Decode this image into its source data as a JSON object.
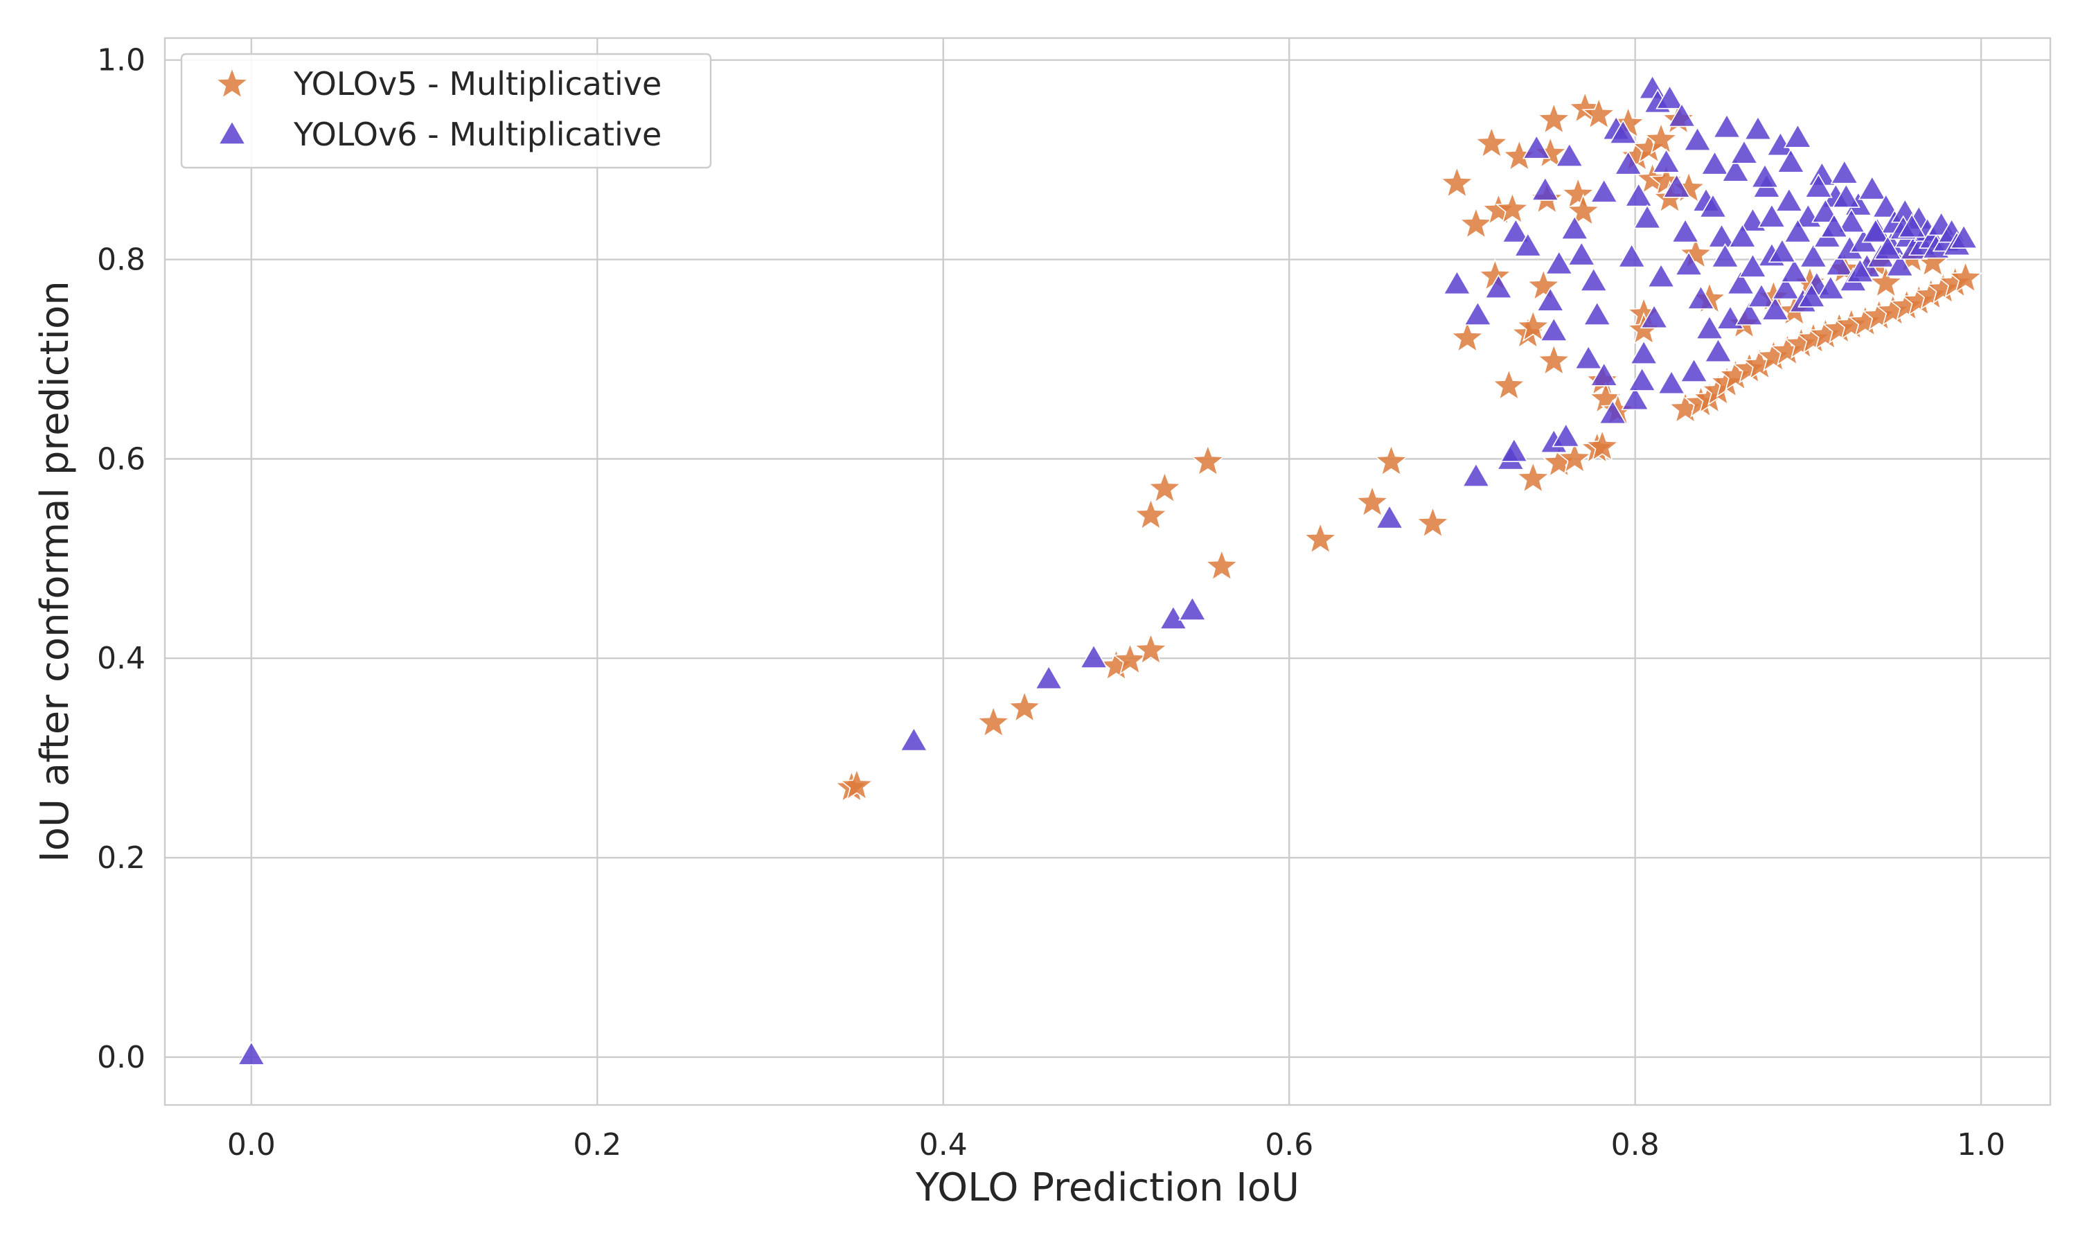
{
  "chart_data": {
    "type": "scatter",
    "title": "",
    "xlabel": "YOLO Prediction IoU",
    "ylabel": "IoU after conformal prediction",
    "xlim": [
      -0.05,
      1.04
    ],
    "ylim": [
      -0.048,
      1.022
    ],
    "xticks": [
      "0.0",
      "0.2",
      "0.4",
      "0.6",
      "0.8",
      "1.0"
    ],
    "yticks": [
      "0.0",
      "0.2",
      "0.4",
      "0.6",
      "0.8",
      "1.0"
    ],
    "grid": true,
    "legend_position": "top-left",
    "series": [
      {
        "name": "YOLOv5 - Multiplicative",
        "marker": "star",
        "color": "#dd7a3c",
        "points": [
          [
            0.347,
            0.27
          ],
          [
            0.35,
            0.272
          ],
          [
            0.429,
            0.335
          ],
          [
            0.447,
            0.35
          ],
          [
            0.5,
            0.392
          ],
          [
            0.508,
            0.398
          ],
          [
            0.52,
            0.408
          ],
          [
            0.52,
            0.543
          ],
          [
            0.528,
            0.57
          ],
          [
            0.553,
            0.597
          ],
          [
            0.561,
            0.492
          ],
          [
            0.618,
            0.519
          ],
          [
            0.648,
            0.556
          ],
          [
            0.659,
            0.597
          ],
          [
            0.683,
            0.535
          ],
          [
            0.697,
            0.876
          ],
          [
            0.703,
            0.721
          ],
          [
            0.708,
            0.835
          ],
          [
            0.717,
            0.916
          ],
          [
            0.719,
            0.783
          ],
          [
            0.721,
            0.849
          ],
          [
            0.727,
            0.673
          ],
          [
            0.729,
            0.85
          ],
          [
            0.733,
            0.903
          ],
          [
            0.738,
            0.725
          ],
          [
            0.741,
            0.732
          ],
          [
            0.741,
            0.58
          ],
          [
            0.747,
            0.773
          ],
          [
            0.749,
            0.86
          ],
          [
            0.751,
            0.906
          ],
          [
            0.753,
            0.698
          ],
          [
            0.753,
            0.94
          ],
          [
            0.756,
            0.596
          ],
          [
            0.765,
            0.6
          ],
          [
            0.767,
            0.865
          ],
          [
            0.77,
            0.848
          ],
          [
            0.771,
            0.951
          ],
          [
            0.779,
            0.945
          ],
          [
            0.778,
            0.61
          ],
          [
            0.781,
            0.612
          ],
          [
            0.781,
            0.678
          ],
          [
            0.783,
            0.66
          ],
          [
            0.79,
            0.648
          ],
          [
            0.796,
            0.936
          ],
          [
            0.801,
            0.903
          ],
          [
            0.805,
            0.745
          ],
          [
            0.805,
            0.729
          ],
          [
            0.808,
            0.911
          ],
          [
            0.81,
            0.88
          ],
          [
            0.815,
            0.92
          ],
          [
            0.818,
            0.878
          ],
          [
            0.82,
            0.861
          ],
          [
            0.825,
            0.94
          ],
          [
            0.829,
            0.65
          ],
          [
            0.831,
            0.871
          ],
          [
            0.835,
            0.805
          ],
          [
            0.838,
            0.656
          ],
          [
            0.843,
            0.66
          ],
          [
            0.848,
            0.668
          ],
          [
            0.853,
            0.676
          ],
          [
            0.858,
            0.683
          ],
          [
            0.866,
            0.69
          ],
          [
            0.872,
            0.694
          ],
          [
            0.88,
            0.702
          ],
          [
            0.888,
            0.708
          ],
          [
            0.896,
            0.715
          ],
          [
            0.903,
            0.72
          ],
          [
            0.91,
            0.724
          ],
          [
            0.918,
            0.73
          ],
          [
            0.925,
            0.734
          ],
          [
            0.933,
            0.737
          ],
          [
            0.941,
            0.743
          ],
          [
            0.949,
            0.748
          ],
          [
            0.957,
            0.753
          ],
          [
            0.964,
            0.758
          ],
          [
            0.971,
            0.764
          ],
          [
            0.978,
            0.77
          ],
          [
            0.985,
            0.776
          ],
          [
            0.991,
            0.781
          ],
          [
            0.863,
            0.735
          ],
          [
            0.88,
            0.762
          ],
          [
            0.901,
            0.776
          ],
          [
            0.921,
            0.79
          ],
          [
            0.94,
            0.795
          ],
          [
            0.96,
            0.801
          ],
          [
            0.843,
            0.76
          ],
          [
            0.892,
            0.748
          ],
          [
            0.945,
            0.776
          ],
          [
            0.972,
            0.797
          ]
        ]
      },
      {
        "name": "YOLOv6 - Multiplicative",
        "marker": "triangle",
        "color": "#5b3fce",
        "points": [
          [
            0.0,
            0.0
          ],
          [
            0.383,
            0.315
          ],
          [
            0.461,
            0.377
          ],
          [
            0.487,
            0.398
          ],
          [
            0.533,
            0.437
          ],
          [
            0.544,
            0.446
          ],
          [
            0.658,
            0.538
          ],
          [
            0.697,
            0.773
          ],
          [
            0.708,
            0.58
          ],
          [
            0.709,
            0.742
          ],
          [
            0.721,
            0.769
          ],
          [
            0.728,
            0.597
          ],
          [
            0.73,
            0.605
          ],
          [
            0.731,
            0.825
          ],
          [
            0.738,
            0.811
          ],
          [
            0.743,
            0.909
          ],
          [
            0.748,
            0.867
          ],
          [
            0.751,
            0.756
          ],
          [
            0.753,
            0.726
          ],
          [
            0.753,
            0.614
          ],
          [
            0.756,
            0.793
          ],
          [
            0.76,
            0.62
          ],
          [
            0.762,
            0.901
          ],
          [
            0.765,
            0.828
          ],
          [
            0.769,
            0.802
          ],
          [
            0.773,
            0.698
          ],
          [
            0.776,
            0.776
          ],
          [
            0.778,
            0.742
          ],
          [
            0.782,
            0.681
          ],
          [
            0.782,
            0.865
          ],
          [
            0.787,
            0.643
          ],
          [
            0.789,
            0.928
          ],
          [
            0.793,
            0.924
          ],
          [
            0.796,
            0.893
          ],
          [
            0.798,
            0.8
          ],
          [
            0.8,
            0.657
          ],
          [
            0.802,
            0.861
          ],
          [
            0.804,
            0.676
          ],
          [
            0.805,
            0.703
          ],
          [
            0.807,
            0.839
          ],
          [
            0.81,
            0.969
          ],
          [
            0.811,
            0.739
          ],
          [
            0.813,
            0.955
          ],
          [
            0.815,
            0.78
          ],
          [
            0.818,
            0.895
          ],
          [
            0.82,
            0.959
          ],
          [
            0.821,
            0.673
          ],
          [
            0.824,
            0.87
          ],
          [
            0.827,
            0.941
          ],
          [
            0.829,
            0.825
          ],
          [
            0.831,
            0.792
          ],
          [
            0.834,
            0.685
          ],
          [
            0.836,
            0.917
          ],
          [
            0.838,
            0.758
          ],
          [
            0.841,
            0.856
          ],
          [
            0.843,
            0.728
          ],
          [
            0.846,
            0.893
          ],
          [
            0.848,
            0.705
          ],
          [
            0.85,
            0.82
          ],
          [
            0.853,
            0.93
          ],
          [
            0.855,
            0.738
          ],
          [
            0.858,
            0.886
          ],
          [
            0.861,
            0.773
          ],
          [
            0.863,
            0.904
          ],
          [
            0.866,
            0.742
          ],
          [
            0.868,
            0.836
          ],
          [
            0.871,
            0.928
          ],
          [
            0.873,
            0.76
          ],
          [
            0.876,
            0.87
          ],
          [
            0.879,
            0.801
          ],
          [
            0.881,
            0.747
          ],
          [
            0.884,
            0.912
          ],
          [
            0.887,
            0.768
          ],
          [
            0.889,
            0.856
          ],
          [
            0.892,
            0.785
          ],
          [
            0.894,
            0.92
          ],
          [
            0.897,
            0.755
          ],
          [
            0.9,
            0.84
          ],
          [
            0.903,
            0.8
          ],
          [
            0.905,
            0.772
          ],
          [
            0.908,
            0.882
          ],
          [
            0.911,
            0.82
          ],
          [
            0.913,
            0.768
          ],
          [
            0.916,
            0.86
          ],
          [
            0.918,
            0.792
          ],
          [
            0.921,
            0.884
          ],
          [
            0.924,
            0.808
          ],
          [
            0.926,
            0.776
          ],
          [
            0.929,
            0.852
          ],
          [
            0.932,
            0.815
          ],
          [
            0.934,
            0.79
          ],
          [
            0.937,
            0.868
          ],
          [
            0.94,
            0.826
          ],
          [
            0.942,
            0.8
          ],
          [
            0.945,
            0.85
          ],
          [
            0.948,
            0.812
          ],
          [
            0.95,
            0.834
          ],
          [
            0.953,
            0.791
          ],
          [
            0.956,
            0.845
          ],
          [
            0.958,
            0.82
          ],
          [
            0.961,
            0.808
          ],
          [
            0.964,
            0.838
          ],
          [
            0.966,
            0.812
          ],
          [
            0.969,
            0.826
          ],
          [
            0.972,
            0.819
          ],
          [
            0.974,
            0.809
          ],
          [
            0.977,
            0.832
          ],
          [
            0.98,
            0.816
          ],
          [
            0.983,
            0.825
          ],
          [
            0.986,
            0.812
          ],
          [
            0.99,
            0.819
          ],
          [
            0.845,
            0.85
          ],
          [
            0.862,
            0.82
          ],
          [
            0.879,
            0.84
          ],
          [
            0.894,
            0.825
          ],
          [
            0.91,
            0.845
          ],
          [
            0.925,
            0.835
          ],
          [
            0.939,
            0.825
          ],
          [
            0.955,
            0.828
          ],
          [
            0.868,
            0.79
          ],
          [
            0.885,
            0.805
          ],
          [
            0.902,
            0.76
          ],
          [
            0.915,
            0.83
          ],
          [
            0.93,
            0.785
          ],
          [
            0.946,
            0.808
          ],
          [
            0.96,
            0.83
          ],
          [
            0.852,
            0.8
          ],
          [
            0.875,
            0.88
          ],
          [
            0.89,
            0.895
          ],
          [
            0.906,
            0.87
          ],
          [
            0.922,
            0.86
          ]
        ]
      }
    ]
  }
}
